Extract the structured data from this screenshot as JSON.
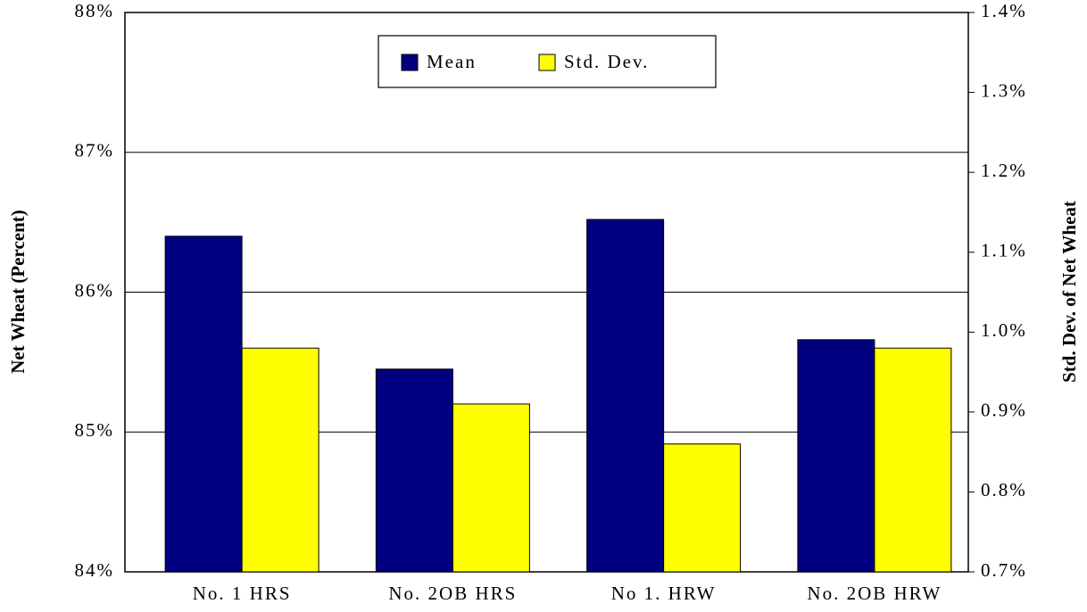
{
  "chart_data": {
    "type": "bar",
    "categories": [
      "No. 1 HRS",
      "No. 2OB HRS",
      "No 1. HRW",
      "No. 2OB HRW"
    ],
    "series": [
      {
        "name": "Mean",
        "color": "#000080",
        "values": [
          86.4,
          85.45,
          86.52,
          85.66
        ]
      },
      {
        "name": "Std. Dev.",
        "color": "#ffff00",
        "axis": "y2",
        "values": [
          0.98,
          0.91,
          0.86,
          0.98
        ]
      }
    ],
    "ylabel": "Net Wheat (Percent)",
    "y2label": "Std. Dev. of Net Wheat",
    "ylim": [
      84,
      88
    ],
    "yticks": [
      {
        "value": 84,
        "label": "84%"
      },
      {
        "value": 85,
        "label": "85%"
      },
      {
        "value": 86,
        "label": "86%"
      },
      {
        "value": 87,
        "label": "87%"
      },
      {
        "value": 88,
        "label": "88%"
      }
    ],
    "y2lim": [
      0.7,
      1.4
    ],
    "y2ticks": [
      {
        "value": 0.7,
        "label": "0.7%"
      },
      {
        "value": 0.8,
        "label": "0.8%"
      },
      {
        "value": 0.9,
        "label": "0.9%"
      },
      {
        "value": 1.0,
        "label": "1.0%"
      },
      {
        "value": 1.1,
        "label": "1.1%"
      },
      {
        "value": 1.2,
        "label": "1.2%"
      },
      {
        "value": 1.3,
        "label": "1.3%"
      },
      {
        "value": 1.4,
        "label": "1.4%"
      }
    ],
    "grid": true,
    "legend": "top"
  }
}
